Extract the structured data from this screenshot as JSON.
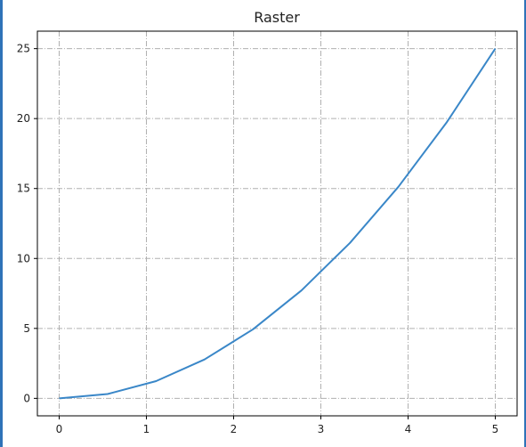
{
  "chart_data": {
    "type": "line",
    "title": "Raster",
    "xlabel": "",
    "ylabel": "",
    "xlim": [
      -0.25,
      5.25
    ],
    "ylim": [
      -1.25,
      26.25
    ],
    "xticks": [
      0,
      1,
      2,
      3,
      4,
      5
    ],
    "yticks": [
      0,
      5,
      10,
      15,
      20,
      25
    ],
    "grid": true,
    "grid_style": "dashdot",
    "series": [
      {
        "color": "#3a87c8",
        "x": [
          0,
          0.5556,
          1.1111,
          1.6667,
          2.2222,
          2.7778,
          3.3333,
          3.8889,
          4.4444,
          5
        ],
        "y": [
          0,
          0.3086,
          1.2346,
          2.7778,
          4.9383,
          7.716,
          11.1111,
          15.1235,
          19.7531,
          25
        ]
      }
    ]
  }
}
